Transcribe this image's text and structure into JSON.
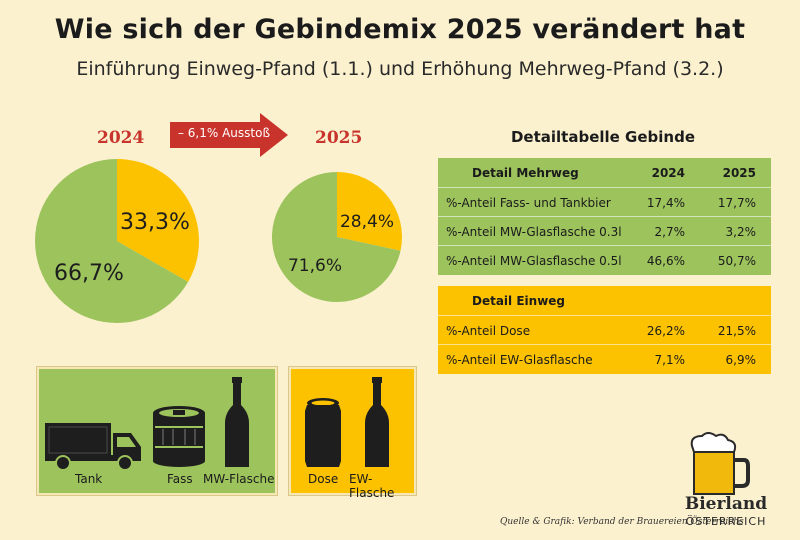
{
  "title": "Wie sich der Gebindemix 2025 verändert hat",
  "subtitle": "Einführung Einweg-Pfand (1.1.) und Erhöhung Mehrweg-Pfand (3.2.)",
  "arrow_label": "– 6,1% Ausstoß",
  "colors": {
    "mehrweg": "#9dc35d",
    "einweg": "#fcc200",
    "accent": "#c8332b"
  },
  "chart_data": [
    {
      "type": "pie",
      "title": "2024",
      "slices": [
        {
          "label": "33,3%",
          "value": 33.3,
          "color": "#fcc200"
        },
        {
          "label": "66,7%",
          "value": 66.7,
          "color": "#9dc35d"
        }
      ]
    },
    {
      "type": "pie",
      "title": "2025",
      "slices": [
        {
          "label": "28,4%",
          "value": 28.4,
          "color": "#fcc200"
        },
        {
          "label": "71,6%",
          "value": 71.6,
          "color": "#9dc35d"
        }
      ]
    },
    {
      "type": "table",
      "title": "Detailtabelle Gebinde",
      "groups": [
        {
          "name": "Detail Mehrweg",
          "columns": [
            "2024",
            "2025"
          ],
          "rows": [
            {
              "label": "%-Anteil Fass- und Tankbier",
              "values": [
                "17,4%",
                "17,7%"
              ]
            },
            {
              "label": "%-Anteil MW-Glasflasche 0.3l",
              "values": [
                "2,7%",
                "3,2%"
              ]
            },
            {
              "label": "%-Anteil MW-Glasflasche 0.5l",
              "values": [
                "46,6%",
                "50,7%"
              ]
            }
          ]
        },
        {
          "name": "Detail Einweg",
          "rows": [
            {
              "label": "%-Anteil Dose",
              "values": [
                "26,2%",
                "21,5%"
              ]
            },
            {
              "label": "%-Anteil EW-Glasflasche",
              "values": [
                "7,1%",
                "6,9%"
              ]
            }
          ]
        }
      ]
    }
  ],
  "legend": {
    "mehrweg_items": [
      {
        "label": "Tank",
        "icon": "truck-icon"
      },
      {
        "label": "Fass",
        "icon": "keg-icon"
      },
      {
        "label": "MW-Flasche",
        "icon": "bottle-icon"
      }
    ],
    "einweg_items": [
      {
        "label": "Dose",
        "icon": "can-icon"
      },
      {
        "label": "EW-Flasche",
        "icon": "bottle-icon"
      }
    ]
  },
  "source": "Quelle & Grafik: Verband der Brauereien Österreichs",
  "logo": {
    "line1": "Bierland",
    "line2": "ÖSTERREICH",
    "icon": "beer-mug-icon"
  }
}
